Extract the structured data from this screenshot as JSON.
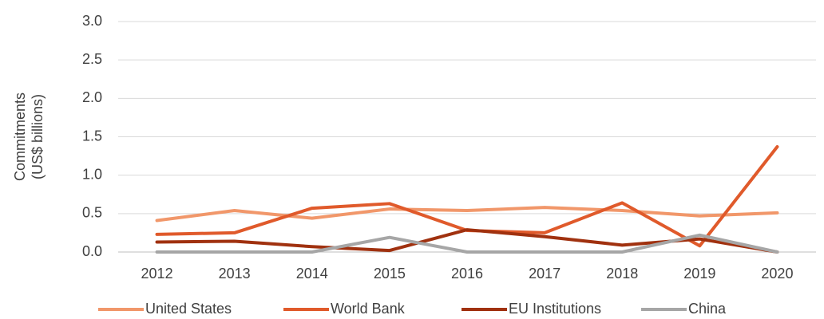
{
  "chart_data": {
    "type": "line",
    "y_label": [
      "Commitments",
      "(US$ billions)"
    ],
    "categories": [
      "2012",
      "2013",
      "2014",
      "2015",
      "2016",
      "2017",
      "2018",
      "2019",
      "2020"
    ],
    "series": [
      {
        "name": "United States",
        "color": "#f1976a",
        "values": [
          0.41,
          0.54,
          0.44,
          0.56,
          0.54,
          0.58,
          0.54,
          0.47,
          0.51
        ]
      },
      {
        "name": "World Bank",
        "color": "#e05a2b",
        "values": [
          0.23,
          0.25,
          0.57,
          0.63,
          0.28,
          0.25,
          0.64,
          0.08,
          1.37
        ]
      },
      {
        "name": "EU Institutions",
        "color": "#a0310f",
        "values": [
          0.13,
          0.14,
          0.07,
          0.02,
          0.29,
          0.2,
          0.09,
          0.17,
          0
        ]
      },
      {
        "name": "China",
        "color": "#a6a6a6",
        "values": [
          0,
          0,
          0,
          0.19,
          0,
          0,
          0,
          0.22,
          0
        ]
      }
    ],
    "ylim": [
      0,
      3
    ],
    "yticks": [
      {
        "value": 0,
        "label": "0.0"
      },
      {
        "value": 0.5,
        "label": "0.5"
      },
      {
        "value": 1,
        "label": "1.0"
      },
      {
        "value": 1.5,
        "label": "1.5"
      },
      {
        "value": 2,
        "label": "2.0"
      },
      {
        "value": 2.5,
        "label": "2.5"
      },
      {
        "value": 3,
        "label": "3.0"
      }
    ],
    "grid": true,
    "legend": "bottom"
  }
}
